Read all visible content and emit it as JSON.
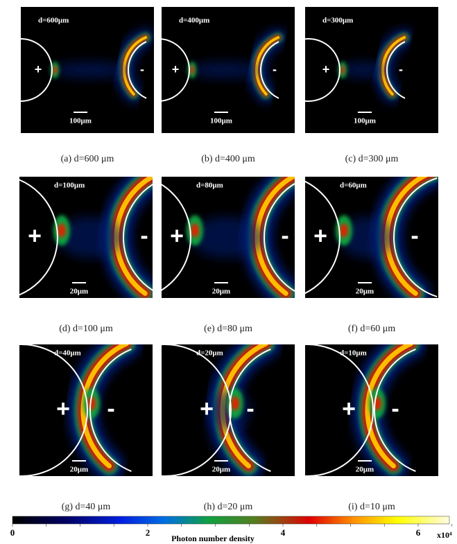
{
  "panels": [
    {
      "label": "d=600μm",
      "plus": "+",
      "minus": "-",
      "scale": "100μm",
      "caption": "(a) d=600 μm"
    },
    {
      "label": "d=400μm",
      "plus": "+",
      "minus": "-",
      "scale": "100μm",
      "caption": "(b) d=400 μm"
    },
    {
      "label": "d=300μm",
      "plus": "+",
      "minus": "-",
      "scale": "100μm",
      "caption": "(c) d=300 μm"
    },
    {
      "label": "d=100μm",
      "plus": "+",
      "minus": "-",
      "scale": "20μm",
      "caption": "(d) d=100 μm"
    },
    {
      "label": "d=80μm",
      "plus": "+",
      "minus": "-",
      "scale": "20μm",
      "caption": "(e) d=80 μm"
    },
    {
      "label": "d=60μm",
      "plus": "+",
      "minus": "-",
      "scale": "20μm",
      "caption": "(f) d=60 μm"
    },
    {
      "label": "d=40μm",
      "plus": "+",
      "minus": "-",
      "scale": "20μm",
      "caption": "(g) d=40 μm"
    },
    {
      "label": "d=20μm",
      "plus": "+",
      "minus": "-",
      "scale": "20μm",
      "caption": "(h) d=20 μm"
    },
    {
      "label": "d=10μm",
      "plus": "+",
      "minus": "-",
      "scale": "20μm",
      "caption": "(i) d=10 μm"
    }
  ],
  "colorbar": {
    "title": "Photon number density",
    "ticks": [
      "0",
      "2",
      "4",
      "6"
    ],
    "multiplier": "x10⁴"
  }
}
